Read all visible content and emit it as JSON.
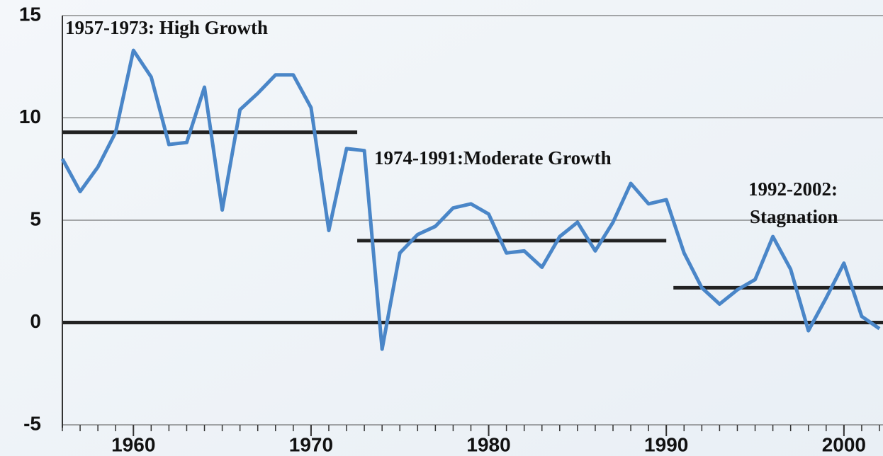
{
  "chart_data": {
    "type": "line",
    "annotations": [
      "1957-1973: High Growth",
      "1974-1991:Moderate Growth",
      "1992-2002:",
      "Stagnation"
    ],
    "x": [
      1956,
      1957,
      1958,
      1959,
      1960,
      1961,
      1962,
      1963,
      1964,
      1965,
      1966,
      1967,
      1968,
      1969,
      1970,
      1971,
      1972,
      1973,
      1974,
      1975,
      1976,
      1977,
      1978,
      1979,
      1980,
      1981,
      1982,
      1983,
      1984,
      1985,
      1986,
      1987,
      1988,
      1989,
      1990,
      1991,
      1992,
      1993,
      1994,
      1995,
      1996,
      1997,
      1998,
      1999,
      2000,
      2001,
      2002
    ],
    "series": [
      {
        "color": "#4a86c8",
        "values": [
          8.0,
          6.4,
          7.6,
          9.3,
          13.3,
          12.0,
          8.7,
          8.8,
          11.5,
          5.5,
          10.4,
          11.2,
          12.1,
          12.1,
          10.5,
          4.5,
          8.5,
          8.4,
          -1.3,
          3.4,
          4.3,
          4.7,
          5.6,
          5.8,
          5.3,
          3.4,
          3.5,
          2.7,
          4.2,
          4.9,
          3.5,
          4.9,
          6.8,
          5.8,
          6.0,
          3.4,
          1.7,
          0.9,
          1.6,
          2.1,
          4.2,
          2.6,
          -0.4,
          1.2,
          2.9,
          0.3,
          -0.3
        ]
      }
    ],
    "averages": [
      {
        "x": [
          1956,
          1972.6
        ],
        "value": 9.3
      },
      {
        "x": [
          1972.6,
          1990
        ],
        "value": 4.0
      },
      {
        "x": [
          1990.4,
          2002.2
        ],
        "value": 1.7
      }
    ],
    "xlim": [
      1956,
      2002.2
    ],
    "xticks": [
      1960,
      1970,
      1980,
      1990,
      2000
    ],
    "ylim": [
      -5,
      15
    ],
    "yticks": [
      -5,
      0,
      5,
      10,
      15
    ],
    "grid": true
  }
}
